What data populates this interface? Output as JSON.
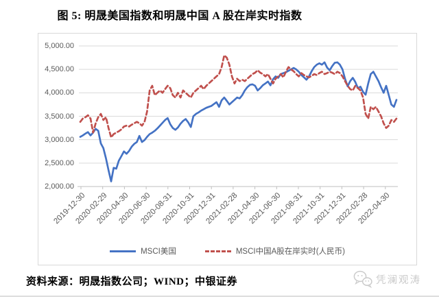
{
  "page": {
    "title": "图 5: 明晟美国指数和明晟中国 A 股在岸实时指数",
    "source_note": "资料来源：明晟指数公司；WIND；中银证券",
    "watermark": "凭澜观涛",
    "watermark_icon": "chat-bubbles-icon"
  },
  "chart_data": {
    "type": "line",
    "title": "图 5: 明晟美国指数和明晟中国 A 股在岸实时指数",
    "grid": true,
    "legend_position": "bottom",
    "ylim": [
      2000,
      5000
    ],
    "y_ticks": [
      {
        "value": 5000,
        "label": "5,000.00"
      },
      {
        "value": 4500,
        "label": "4,500.00"
      },
      {
        "value": 4000,
        "label": "4,000.00"
      },
      {
        "value": 3500,
        "label": "3,500.00"
      },
      {
        "value": 3000,
        "label": "3,000.00"
      },
      {
        "value": 2500,
        "label": "2,500.00"
      },
      {
        "value": 2000,
        "label": "2,000.00"
      }
    ],
    "x_tick_labels": [
      "2019-12-30",
      "2020-02-29",
      "2020-04-30",
      "2020-06-30",
      "2020-08-31",
      "2020-10-31",
      "2020-12-31",
      "2021-02-28",
      "2021-04-30",
      "2021-06-30",
      "2021-08-31",
      "2021-10-31",
      "2021-12-31",
      "2022-02-28",
      "2022-04-30"
    ],
    "axis_color": "#bfbfbf",
    "gridline_color": "#d9d9d9",
    "series": [
      {
        "name": "MSCI美国",
        "color": "#4472C4",
        "style": "solid",
        "values": [
          3060,
          3090,
          3130,
          3160,
          3090,
          3150,
          3230,
          3190,
          2920,
          2820,
          2600,
          2350,
          2110,
          2400,
          2380,
          2550,
          2650,
          2750,
          2700,
          2760,
          2850,
          2910,
          2950,
          3080,
          2950,
          2990,
          3060,
          3120,
          3150,
          3190,
          3240,
          3300,
          3360,
          3420,
          3460,
          3330,
          3250,
          3210,
          3260,
          3340,
          3400,
          3440,
          3370,
          3270,
          3500,
          3550,
          3580,
          3620,
          3650,
          3680,
          3700,
          3720,
          3760,
          3800,
          3700,
          3840,
          3900,
          3830,
          3750,
          3800,
          3850,
          3900,
          3880,
          3950,
          4050,
          4120,
          4170,
          4180,
          4150,
          4050,
          4100,
          4160,
          4200,
          4240,
          4160,
          4290,
          4350,
          4320,
          4400,
          4420,
          4440,
          4470,
          4500,
          4530,
          4500,
          4450,
          4380,
          4330,
          4280,
          4350,
          4460,
          4550,
          4600,
          4630,
          4600,
          4650,
          4540,
          4480,
          4570,
          4640,
          4650,
          4600,
          4500,
          4300,
          4140,
          4250,
          4320,
          4230,
          4100,
          4130,
          4020,
          3960,
          4200,
          4400,
          4450,
          4350,
          4250,
          4120,
          4000,
          4150,
          3950,
          3750,
          3700,
          3850
        ]
      },
      {
        "name": "MSCI中国A股在岸实时(人民币)",
        "color": "#C0504D",
        "style": "dashed",
        "values": [
          3380,
          3450,
          3480,
          3520,
          3450,
          3150,
          3350,
          3480,
          3550,
          3420,
          3480,
          3250,
          3050,
          3120,
          3150,
          3180,
          3220,
          3280,
          3300,
          3280,
          3320,
          3350,
          3380,
          3350,
          3300,
          3380,
          3600,
          4050,
          4150,
          3950,
          4000,
          4050,
          4000,
          4080,
          4150,
          4100,
          3950,
          3900,
          4000,
          3900,
          4050,
          4000,
          3950,
          3900,
          4000,
          4050,
          4100,
          4150,
          4080,
          4150,
          4200,
          4250,
          4300,
          4350,
          4400,
          4550,
          4800,
          4750,
          4600,
          4350,
          4200,
          4300,
          4250,
          4280,
          4250,
          4300,
          4350,
          4400,
          4430,
          4480,
          4430,
          4400,
          4350,
          4400,
          4300,
          4200,
          4300,
          4350,
          4400,
          4330,
          4450,
          4550,
          4500,
          4460,
          4400,
          4350,
          4420,
          4380,
          4350,
          4330,
          4360,
          4400,
          4380,
          4420,
          4450,
          4400,
          4420,
          4450,
          4430,
          4400,
          4450,
          4420,
          4350,
          4250,
          4150,
          4080,
          4050,
          4150,
          4100,
          4050,
          3900,
          3550,
          3450,
          3700,
          3650,
          3700,
          3600,
          3500,
          3350,
          3250,
          3300,
          3420,
          3380,
          3450
        ]
      }
    ]
  }
}
